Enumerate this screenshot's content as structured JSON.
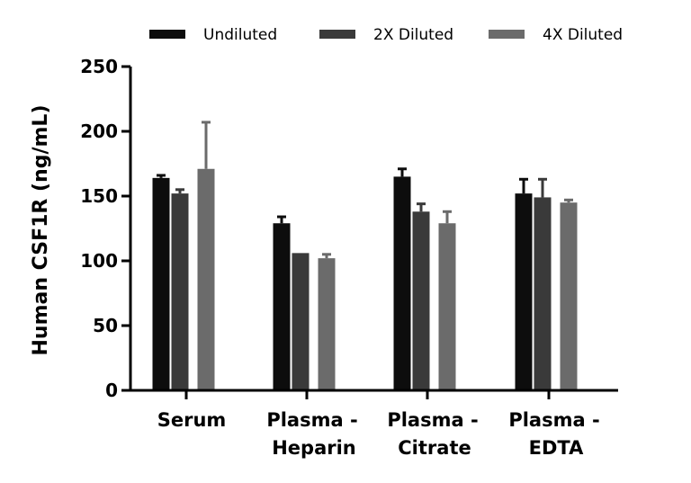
{
  "chart_data": {
    "type": "bar",
    "title": "",
    "xlabel": "",
    "ylabel": "Human CSF1R (ng/mL)",
    "ylim": [
      0,
      250
    ],
    "yticks": [
      0,
      50,
      100,
      150,
      200,
      250
    ],
    "ytick_labels": [
      "0",
      "50",
      "100",
      "150",
      "200",
      "250"
    ],
    "categories": [
      {
        "line1": "Serum",
        "line2": ""
      },
      {
        "line1": "Plasma -",
        "line2": "Heparin"
      },
      {
        "line1": "Plasma -",
        "line2": "Citrate"
      },
      {
        "line1": "Plasma -",
        "line2": "EDTA"
      }
    ],
    "legend_position": "top",
    "series": [
      {
        "name": "Undiluted",
        "color": "#0d0d0d",
        "values": [
          164,
          129,
          165,
          152
        ],
        "error": [
          2,
          5,
          6,
          11
        ]
      },
      {
        "name": "2X Diluted",
        "color": "#3a3a3a",
        "values": [
          152,
          106,
          138,
          149
        ],
        "error": [
          3,
          0,
          6,
          14
        ]
      },
      {
        "name": "4X Diluted",
        "color": "#6b6b6b",
        "values": [
          171,
          102,
          129,
          145
        ],
        "error": [
          36,
          3,
          9,
          2
        ]
      }
    ]
  }
}
